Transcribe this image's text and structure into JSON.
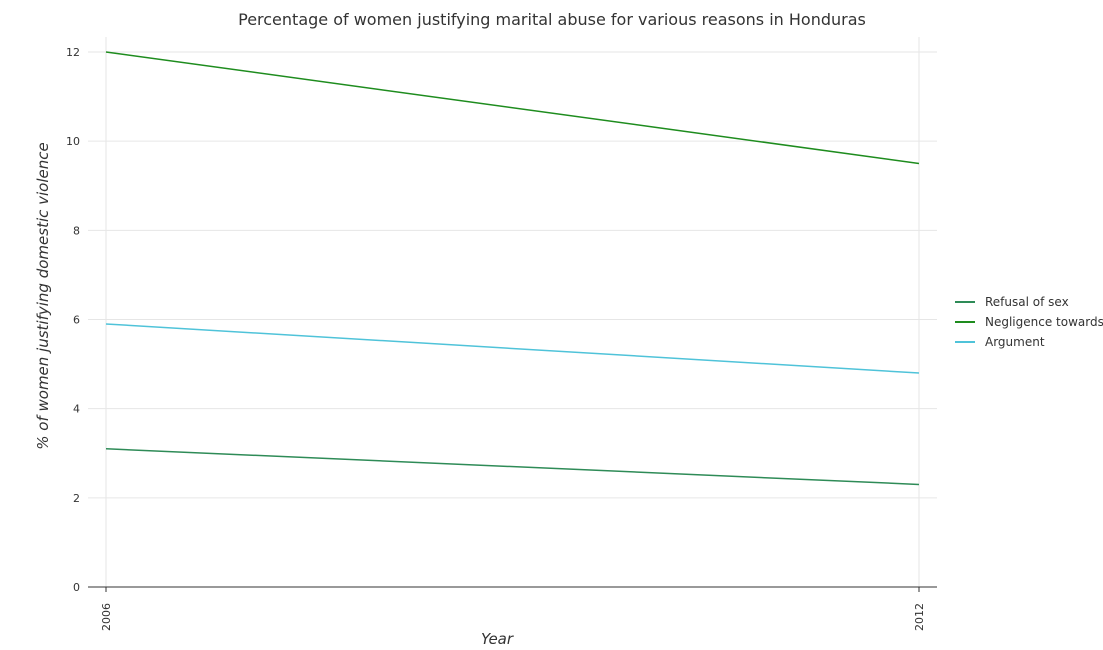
{
  "chart_data": {
    "type": "line",
    "title": "Percentage of women justifying marital abuse for various reasons in Honduras",
    "xlabel": "Year",
    "ylabel": "% of women justifying domestic violence",
    "categories": [
      "2006",
      "2012"
    ],
    "ylim": [
      0,
      12
    ],
    "yticks": [
      "0",
      "2",
      "4",
      "6",
      "8",
      "10",
      "12"
    ],
    "grid": true,
    "legend_position": "right",
    "series": [
      {
        "name": "Refusal of sex",
        "color": "#2e8b57",
        "values": [
          3.1,
          2.3
        ]
      },
      {
        "name": "Negligence towards kids",
        "color": "#1e8c1e",
        "values": [
          12.0,
          9.5
        ]
      },
      {
        "name": "Argument",
        "color": "#4fc3d9",
        "values": [
          5.9,
          4.8
        ]
      }
    ]
  }
}
